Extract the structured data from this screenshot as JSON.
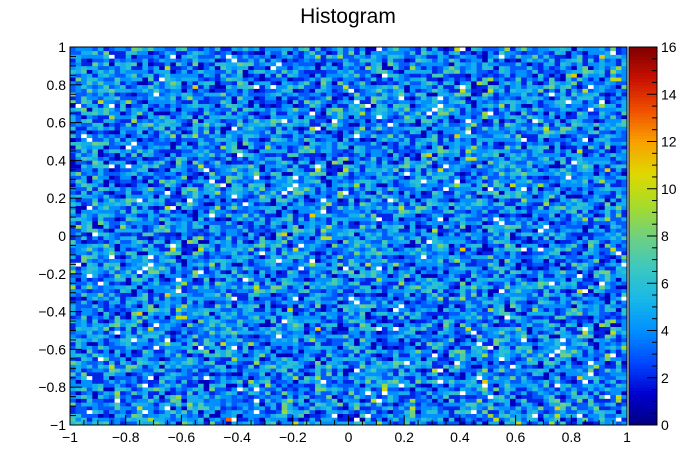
{
  "chart_data": {
    "type": "heatmap",
    "title": "Histogram",
    "xlabel": "",
    "ylabel": "",
    "xlim": [
      -1,
      1
    ],
    "ylim": [
      -1,
      1
    ],
    "bins_x": 100,
    "bins_y": 100,
    "x_ticks": [
      "−1",
      "−0.8",
      "−0.6",
      "−0.4",
      "−0.2",
      "0",
      "0.2",
      "0.4",
      "0.6",
      "0.8",
      "1"
    ],
    "y_ticks": [
      "−1",
      "−0.8",
      "−0.6",
      "−0.4",
      "−0.2",
      "0",
      "0.2",
      "0.4",
      "0.6",
      "0.8",
      "1"
    ],
    "x_tick_values": [
      -1,
      -0.8,
      -0.6,
      -0.4,
      -0.2,
      0,
      0.2,
      0.4,
      0.6,
      0.8,
      1
    ],
    "y_tick_values": [
      -1,
      -0.8,
      -0.6,
      -0.4,
      -0.2,
      0,
      0.2,
      0.4,
      0.6,
      0.8,
      1
    ],
    "colorbar": {
      "min": 0,
      "max": 16,
      "ticks": [
        "0",
        "2",
        "4",
        "6",
        "8",
        "10",
        "12",
        "14",
        "16"
      ],
      "tick_values": [
        0,
        2,
        4,
        6,
        8,
        10,
        12,
        14,
        16
      ]
    },
    "distribution": {
      "description": "approximately uniform random counts per bin",
      "mean_count": 4,
      "max_count": 16
    },
    "colormap": [
      "#000080",
      "#0000d0",
      "#0048ff",
      "#0090ff",
      "#18b8e8",
      "#3cc8c0",
      "#70d080",
      "#a8dc28",
      "#e0d800",
      "#f8a000",
      "#f05000",
      "#c81000",
      "#800000"
    ],
    "empty_bin_color": "#ffffff"
  }
}
